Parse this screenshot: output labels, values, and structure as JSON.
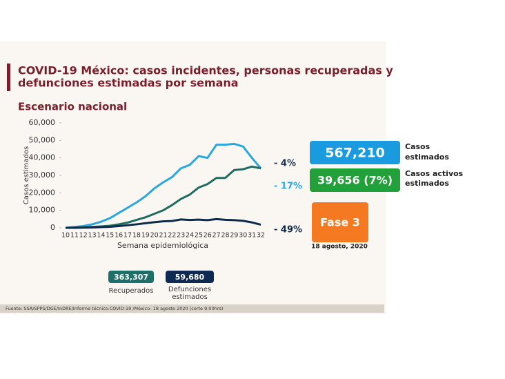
{
  "chart_data": {
    "type": "line",
    "title": [
      "COVID-19 México: casos incidentes, personas recuperadas y",
      "defunciones estimadas por semana"
    ],
    "subtitle": "Escenario nacional",
    "y_label": "Casos estimados",
    "x_label": "Semana epidemiológica",
    "categories": [
      "10",
      "11",
      "12",
      "13",
      "14",
      "15",
      "16",
      "17",
      "18",
      "19",
      "20",
      "21",
      "22",
      "23",
      "24",
      "25",
      "26",
      "27",
      "28",
      "29",
      "30",
      "31",
      "32"
    ],
    "series": [
      {
        "color": "#2aa7dd",
        "values": [
          0,
          500,
          1000,
          2000,
          3500,
          5500,
          8500,
          11500,
          14500,
          18000,
          22500,
          26000,
          29000,
          34000,
          36000,
          41000,
          40000,
          47500,
          47500,
          48000,
          46500,
          40000,
          34000
        ]
      },
      {
        "color": "#1e6b5f",
        "values": [
          0,
          100,
          300,
          500,
          800,
          1200,
          2000,
          3000,
          4500,
          6000,
          8000,
          10000,
          13000,
          16500,
          19000,
          23000,
          25000,
          28500,
          28500,
          33000,
          33500,
          35000,
          34000
        ]
      },
      {
        "color": "#0d2a4a",
        "values": [
          0,
          0,
          100,
          200,
          400,
          600,
          1000,
          1500,
          2000,
          2600,
          3200,
          3700,
          3900,
          4800,
          4500,
          4700,
          4400,
          5000,
          4600,
          4400,
          4000,
          3100,
          1800
        ]
      }
    ],
    "ylim": [
      0,
      60000
    ],
    "yticks": [
      0,
      {
        "value": 10000,
        "label": "10,000"
      },
      {
        "value": 20000,
        "label": "20,000"
      },
      {
        "value": 30000,
        "label": "30,000"
      },
      {
        "value": 40000,
        "label": "40,000"
      },
      {
        "value": 50000,
        "label": "50,000"
      },
      {
        "value": 60000,
        "label": "60,000"
      }
    ],
    "annotations": [
      {
        "text": "- 4%",
        "color": "#1a3550"
      },
      {
        "text": "- 17%",
        "color": "#2aa7dd"
      },
      {
        "text": "- 49%",
        "color": "#0d2a4a"
      }
    ]
  },
  "summary": {
    "cases": {
      "value": "567,210",
      "label": [
        "Casos",
        "estimados"
      ],
      "color": "#1a9be0"
    },
    "active": {
      "value": "39,656 (7%)",
      "label": [
        "Casos activos",
        "estimados"
      ],
      "color": "#22a03a"
    },
    "phase": {
      "value": "Fase 3",
      "date": "18 agosto, 2020",
      "color": "#f47920"
    },
    "recovered": {
      "value": "363,307",
      "label": "Recuperados",
      "color": "#1e6e6a"
    },
    "deaths": {
      "value": "59,680",
      "label": [
        "Defunciones",
        "estimados"
      ],
      "color": "#0f2a52"
    }
  },
  "source": "Fuente: SSA/SPPS/DGE/InDRE/Informe técnico.COVID-19 /México- 18 agosto 2020 (corte 9:00hrs)"
}
